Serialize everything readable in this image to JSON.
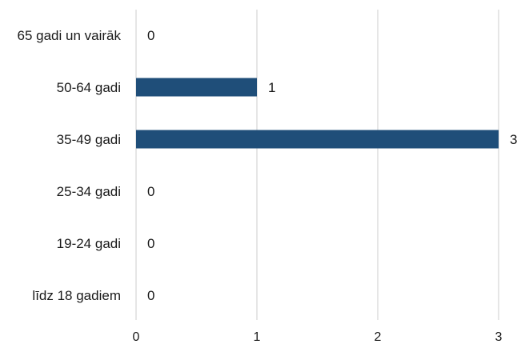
{
  "chart_data": {
    "type": "bar",
    "orientation": "horizontal",
    "categories": [
      "65 gadi un vairāk",
      "50-64 gadi",
      "35-49 gadi",
      "25-34 gadi",
      "19-24 gadi",
      "līdz 18 gadiem"
    ],
    "values": [
      0,
      1,
      3,
      0,
      0,
      0
    ],
    "data_labels": [
      "0",
      "1",
      "3",
      "0",
      "0",
      "0"
    ],
    "xlim": [
      0,
      3
    ],
    "x_ticks": [
      "0",
      "1",
      "2",
      "3"
    ],
    "grid": "vertical",
    "title": "",
    "xlabel": "",
    "ylabel": "",
    "bar_color": "#1f4e79",
    "grid_color": "#d9d9d9"
  }
}
